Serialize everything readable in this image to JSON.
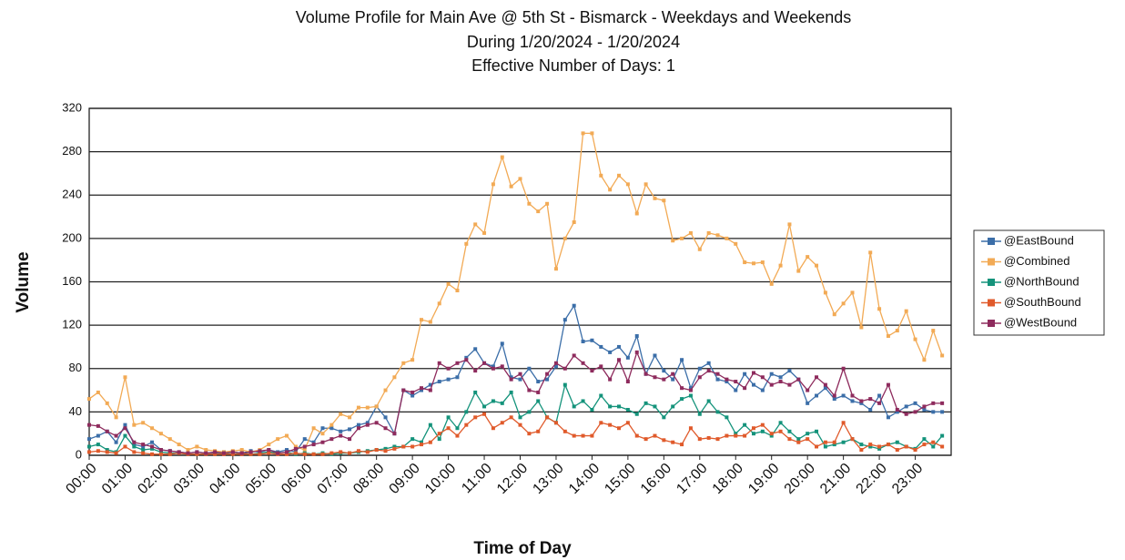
{
  "chart_data": {
    "type": "line",
    "title": "Volume Profile for Main Ave @ 5th St - Bismarck - Weekdays and Weekends",
    "subtitle": "During 1/20/2024 - 1/20/2024",
    "note": "Effective Number of Days: 1",
    "x_label": "Time of Day",
    "y_label": "Volume",
    "categories": [
      "00:00",
      null,
      null,
      null,
      "01:00",
      null,
      null,
      null,
      "02:00",
      null,
      null,
      null,
      "03:00",
      null,
      null,
      null,
      "04:00",
      null,
      null,
      null,
      "05:00",
      null,
      null,
      null,
      "06:00",
      null,
      null,
      null,
      "07:00",
      null,
      null,
      null,
      "08:00",
      null,
      null,
      null,
      "09:00",
      null,
      null,
      null,
      "10:00",
      null,
      null,
      null,
      "11:00",
      null,
      null,
      null,
      "12:00",
      null,
      null,
      null,
      "13:00",
      null,
      null,
      null,
      "14:00",
      null,
      null,
      null,
      "15:00",
      null,
      null,
      null,
      "16:00",
      null,
      null,
      null,
      "17:00",
      null,
      null,
      null,
      "18:00",
      null,
      null,
      null,
      "19:00",
      null,
      null,
      null,
      "20:00",
      null,
      null,
      null,
      "21:00",
      null,
      null,
      null,
      "22:00",
      null,
      null,
      null,
      "23:00",
      null,
      null,
      null
    ],
    "ylim": [
      0,
      320
    ],
    "yticks": [
      0,
      40,
      80,
      120,
      160,
      200,
      240,
      280,
      320
    ],
    "grid": true,
    "legend": "right",
    "series": [
      {
        "name": "@EastBound",
        "color": "#3b6ea8",
        "values": [
          15,
          18,
          22,
          12,
          28,
          10,
          8,
          12,
          5,
          4,
          3,
          2,
          3,
          2,
          2,
          3,
          3,
          2,
          4,
          3,
          5,
          3,
          5,
          3,
          15,
          12,
          25,
          25,
          22,
          24,
          28,
          30,
          45,
          35,
          20,
          60,
          55,
          60,
          65,
          68,
          70,
          72,
          90,
          98,
          85,
          82,
          103,
          72,
          70,
          80,
          68,
          70,
          82,
          125,
          138,
          105,
          106,
          100,
          95,
          100,
          90,
          110,
          75,
          92,
          78,
          70,
          88,
          62,
          80,
          85,
          70,
          68,
          60,
          75,
          65,
          60,
          75,
          72,
          78,
          70,
          48,
          55,
          62,
          52,
          55,
          50,
          48,
          42,
          55,
          35,
          40,
          45,
          48,
          42,
          40,
          40
        ]
      },
      {
        "name": "@Combined",
        "color": "#f2aa55",
        "values": [
          52,
          58,
          48,
          35,
          72,
          28,
          30,
          25,
          20,
          15,
          10,
          5,
          8,
          5,
          4,
          3,
          4,
          5,
          3,
          5,
          10,
          15,
          18,
          8,
          5,
          25,
          20,
          28,
          38,
          35,
          44,
          44,
          45,
          60,
          72,
          85,
          88,
          125,
          123,
          140,
          158,
          152,
          195,
          213,
          205,
          250,
          275,
          248,
          255,
          232,
          225,
          232,
          172,
          200,
          215,
          297,
          297,
          258,
          245,
          258,
          250,
          223,
          250,
          237,
          235,
          198,
          200,
          205,
          190,
          205,
          203,
          200,
          195,
          178,
          177,
          178,
          158,
          175,
          213,
          170,
          183,
          175,
          150,
          130,
          140,
          150,
          118,
          187,
          135,
          110,
          115,
          133,
          107,
          88,
          115,
          92
        ]
      },
      {
        "name": "@NorthBound",
        "color": "#14937b",
        "values": [
          8,
          10,
          5,
          3,
          18,
          8,
          5,
          6,
          3,
          2,
          2,
          1,
          1,
          1,
          1,
          2,
          1,
          2,
          1,
          2,
          3,
          2,
          3,
          1,
          2,
          1,
          2,
          1,
          2,
          2,
          3,
          4,
          5,
          6,
          8,
          8,
          15,
          12,
          28,
          15,
          35,
          25,
          40,
          58,
          45,
          50,
          48,
          58,
          35,
          40,
          50,
          35,
          30,
          65,
          45,
          50,
          42,
          55,
          45,
          45,
          42,
          38,
          48,
          45,
          35,
          45,
          52,
          55,
          38,
          50,
          40,
          35,
          20,
          28,
          20,
          22,
          18,
          30,
          22,
          15,
          20,
          22,
          8,
          10,
          12,
          15,
          10,
          8,
          6,
          10,
          12,
          8,
          6,
          15,
          8,
          18
        ]
      },
      {
        "name": "@SouthBound",
        "color": "#e05a2b",
        "values": [
          3,
          4,
          3,
          2,
          8,
          3,
          2,
          1,
          1,
          1,
          2,
          1,
          1,
          1,
          1,
          1,
          1,
          1,
          1,
          1,
          2,
          1,
          1,
          2,
          1,
          1,
          1,
          2,
          3,
          2,
          4,
          3,
          5,
          4,
          6,
          8,
          8,
          10,
          12,
          20,
          25,
          18,
          28,
          35,
          38,
          25,
          30,
          35,
          28,
          20,
          22,
          35,
          30,
          22,
          18,
          18,
          18,
          30,
          28,
          25,
          30,
          18,
          15,
          18,
          14,
          12,
          10,
          25,
          15,
          16,
          15,
          18,
          18,
          18,
          25,
          28,
          20,
          22,
          15,
          12,
          15,
          8,
          12,
          12,
          30,
          15,
          5,
          10,
          8,
          10,
          5,
          8,
          5,
          10,
          12,
          8
        ]
      },
      {
        "name": "@WestBound",
        "color": "#8e2b5d",
        "values": [
          28,
          27,
          22,
          18,
          25,
          12,
          10,
          8,
          5,
          4,
          3,
          2,
          3,
          2,
          3,
          2,
          3,
          2,
          3,
          4,
          5,
          2,
          3,
          6,
          8,
          10,
          12,
          15,
          18,
          15,
          25,
          28,
          30,
          25,
          20,
          60,
          58,
          62,
          60,
          85,
          80,
          85,
          88,
          78,
          85,
          80,
          82,
          70,
          75,
          60,
          58,
          75,
          85,
          80,
          92,
          85,
          78,
          82,
          70,
          88,
          68,
          95,
          75,
          72,
          70,
          75,
          62,
          60,
          72,
          78,
          75,
          70,
          68,
          62,
          76,
          72,
          65,
          68,
          65,
          70,
          60,
          72,
          65,
          55,
          80,
          55,
          50,
          52,
          48,
          65,
          42,
          38,
          40,
          45,
          48,
          48
        ]
      }
    ]
  }
}
